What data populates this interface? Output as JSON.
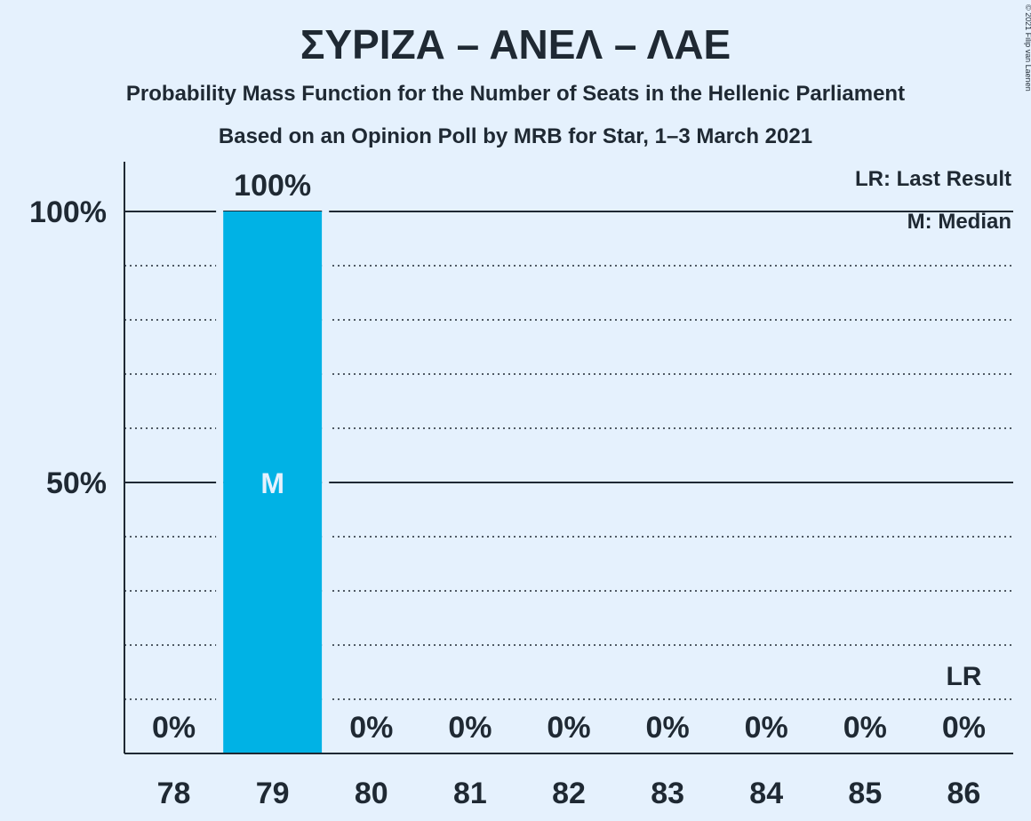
{
  "chart_data": {
    "type": "bar",
    "title": "ΣΥΡΙΖΑ – ΑΝΕΛ – ΛΑΕ",
    "subtitle": "Probability Mass Function for the Number of Seats in the Hellenic Parliament",
    "subtitle2": "Based on an Opinion Poll by MRB for Star, 1–3 March 2021",
    "categories": [
      "78",
      "79",
      "80",
      "81",
      "82",
      "83",
      "84",
      "85",
      "86"
    ],
    "values": [
      0,
      100,
      0,
      0,
      0,
      0,
      0,
      0,
      0
    ],
    "value_labels": [
      "0%",
      "100%",
      "0%",
      "0%",
      "0%",
      "0%",
      "0%",
      "0%",
      "0%"
    ],
    "ylim": [
      0,
      100
    ],
    "yticks": [
      {
        "value": 50,
        "label": "50%"
      },
      {
        "value": 100,
        "label": "100%"
      }
    ],
    "minor_gridlines": [
      10,
      20,
      30,
      40,
      60,
      70,
      80,
      90
    ],
    "median_category": "79",
    "median_marker": "M",
    "last_result_category": "86",
    "last_result_marker": "LR",
    "legend": {
      "placement": "top-right",
      "items": [
        "LR: Last Result",
        "M: Median"
      ]
    },
    "bar_color": "#00b2e5",
    "copyright": "© 2021 Filip van Laenen"
  }
}
